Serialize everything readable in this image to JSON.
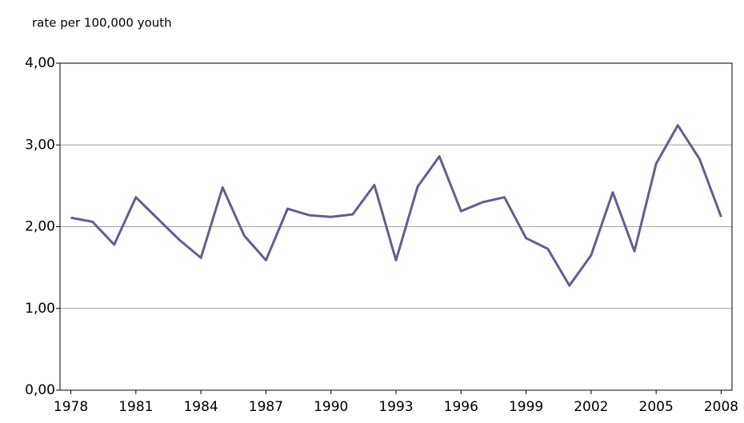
{
  "chart_data": {
    "type": "line",
    "y_axis_label": "rate per 100,000 youth",
    "x": [
      1978,
      1979,
      1980,
      1981,
      1982,
      1983,
      1984,
      1985,
      1986,
      1987,
      1988,
      1989,
      1990,
      1991,
      1992,
      1993,
      1994,
      1995,
      1996,
      1997,
      1998,
      1999,
      2000,
      2001,
      2002,
      2003,
      2004,
      2005,
      2006,
      2007,
      2008
    ],
    "series": [
      {
        "color": "#5f5f96",
        "values": [
          2.11,
          2.06,
          1.78,
          2.36,
          2.1,
          1.84,
          1.62,
          2.48,
          1.89,
          1.59,
          2.22,
          2.14,
          2.12,
          2.15,
          2.51,
          1.59,
          2.49,
          2.86,
          2.19,
          2.3,
          2.36,
          1.86,
          1.73,
          1.28,
          1.65,
          2.42,
          1.7,
          2.77,
          3.24,
          2.83,
          2.12
        ]
      }
    ],
    "xlim": [
      1977.5,
      2008.5
    ],
    "xticks": [
      1978,
      1981,
      1984,
      1987,
      1990,
      1993,
      1996,
      1999,
      2002,
      2005,
      2008
    ],
    "ylim": [
      0,
      4
    ],
    "yticks": [
      {
        "value": 0,
        "label": "0,00"
      },
      {
        "value": 1,
        "label": "1,00"
      },
      {
        "value": 2,
        "label": "2,00"
      },
      {
        "value": 3,
        "label": "3,00"
      },
      {
        "value": 4,
        "label": "4,00"
      }
    ],
    "grid": true
  }
}
